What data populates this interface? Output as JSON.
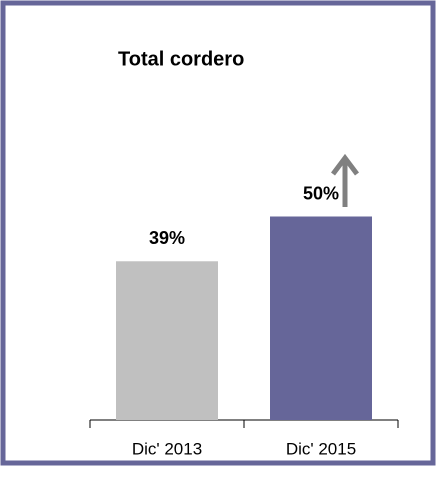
{
  "chart_data": {
    "type": "bar",
    "title": "Total cordero",
    "categories": [
      "Dic' 2013",
      "Dic' 2015"
    ],
    "values": [
      39,
      50
    ],
    "value_labels": [
      "39%",
      "50%"
    ],
    "colors": [
      "#c0c0c0",
      "#666699"
    ]
  }
}
